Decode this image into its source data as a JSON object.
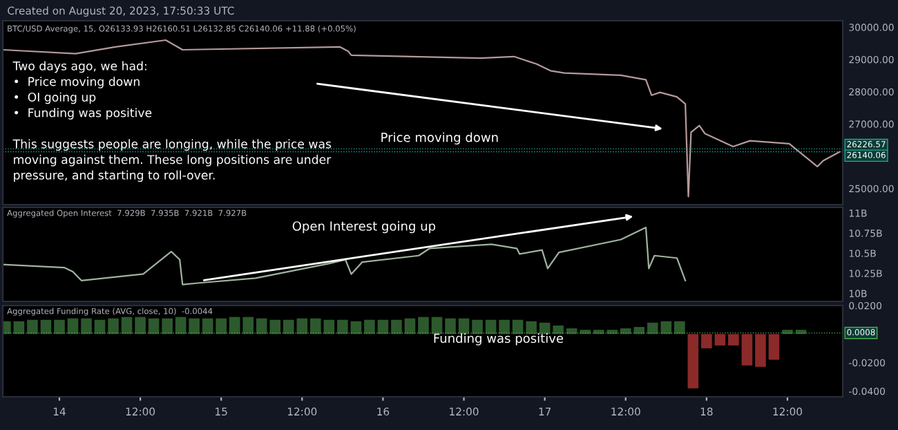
{
  "chart_data": [
    {
      "type": "line",
      "title": "BTC/USD Average, 15, O26133.93 H26160.51 L26132.85 C26140.06 +11.88 (+0.05%)",
      "annotations": [
        "Created on August 20, 2023, 17:50:33 UTC",
        "Two days ago, we had:\n•  Price moving down\n•  OI going up\n•  Funding was positive\n\nThis suggests people are longing, while the price was\nmoving against them. These long positions are under\npressure, and starting to roll-over.",
        "Price moving down"
      ],
      "x": [
        "2023-08-13T15:36",
        "2023-08-14T02:24",
        "2023-08-14T08:18",
        "2023-08-14T15:46",
        "2023-08-14T18:16",
        "2023-08-15T17:36",
        "2023-08-15T18:51",
        "2023-08-15T19:18",
        "2023-08-16T14:26",
        "2023-08-16T19:26",
        "2023-08-16T22:46",
        "2023-08-17T00:51",
        "2023-08-17T02:56",
        "2023-08-17T11:18",
        "2023-08-17T15:00",
        "2023-08-17T15:51",
        "2023-08-17T17:06",
        "2023-08-17T19:36",
        "2023-08-17T20:51",
        "2023-08-17T21:18",
        "2023-08-17T21:42",
        "2023-08-17T22:56",
        "2023-08-17T23:46",
        "2023-08-18T03:56",
        "2023-08-18T06:26",
        "2023-08-18T12:16",
        "2023-08-18T16:26",
        "2023-08-18T17:18",
        "2023-08-18T19:46"
      ],
      "series": [
        {
          "color": "#b59a9a",
          "values": [
            29300,
            29180,
            29390,
            29600,
            29300,
            29390,
            29250,
            29130,
            29040,
            29090,
            28860,
            28650,
            28580,
            28510,
            28370,
            27890,
            27980,
            27840,
            27620,
            24750,
            26740,
            26950,
            26700,
            26300,
            26480,
            26390,
            25680,
            25860,
            26140
          ]
        }
      ],
      "xlim": [
        "2023-08-13T15:36",
        "2023-08-18T20:12"
      ],
      "ylim": [
        24500,
        30200
      ],
      "yticks": [
        {
          "value": 25000,
          "label": "25000.00"
        },
        {
          "value": 27000,
          "label": "27000.00"
        },
        {
          "value": 28000,
          "label": "28000.00"
        },
        {
          "value": 29000,
          "label": "29000.00"
        },
        {
          "value": 30000,
          "label": "30000.00"
        }
      ],
      "ref_lines": [
        {
          "axis": "y",
          "value": 26226.57,
          "label": "26226.57",
          "color": "#26a69a"
        },
        {
          "axis": "y",
          "value": 26140.06,
          "label": "26140.06",
          "color": "#26a69a"
        }
      ],
      "tick_labels": "y"
    },
    {
      "type": "line",
      "title": "Aggregated Open Interest  7.929B  7.935B  7.921B  7.927B",
      "annotations": [
        "Open Interest going up"
      ],
      "x": [
        "2023-08-13T15:36",
        "2023-08-14T00:46",
        "2023-08-14T02:00",
        "2023-08-14T03:16",
        "2023-08-14T12:26",
        "2023-08-14T16:36",
        "2023-08-14T17:51",
        "2023-08-14T18:16",
        "2023-08-14T20:46",
        "2023-08-15T05:06",
        "2023-08-15T15:56",
        "2023-08-15T18:26",
        "2023-08-15T19:18",
        "2023-08-15T20:56",
        "2023-08-16T05:18",
        "2023-08-16T06:56",
        "2023-08-16T16:06",
        "2023-08-16T19:51",
        "2023-08-16T20:16",
        "2023-08-16T23:36",
        "2023-08-17T00:26",
        "2023-08-17T02:06",
        "2023-08-17T11:18",
        "2023-08-17T15:00",
        "2023-08-17T15:26",
        "2023-08-17T16:16",
        "2023-08-17T19:36",
        "2023-08-17T20:51"
      ],
      "series": [
        {
          "color": "#9fb39f",
          "values": [
            10.36,
            10.32,
            10.27,
            10.16,
            10.24,
            10.52,
            10.42,
            10.11,
            10.13,
            10.19,
            10.37,
            10.42,
            10.24,
            10.39,
            10.47,
            10.56,
            10.61,
            10.56,
            10.49,
            10.54,
            10.31,
            10.51,
            10.67,
            10.82,
            10.31,
            10.47,
            10.44,
            10.16
          ]
        }
      ],
      "xlim": [
        "2023-08-13T15:36",
        "2023-08-18T20:12"
      ],
      "ylim": [
        9.9,
        11.07
      ],
      "yticks": [
        {
          "value": 10,
          "label": "10B"
        },
        {
          "value": 10.25,
          "label": "10.25B"
        },
        {
          "value": 10.5,
          "label": "10.5B"
        },
        {
          "value": 10.75,
          "label": "10.75B"
        },
        {
          "value": 11,
          "label": "11B"
        }
      ],
      "tick_labels": "y"
    },
    {
      "type": "bar",
      "title": "Aggregated Funding Rate (AVG, close, 10)  -0.0044",
      "annotations": [
        "Funding was positive"
      ],
      "x": [
        "2023-08-13T16:00",
        "2023-08-13T18:00",
        "2023-08-13T20:00",
        "2023-08-13T22:00",
        "2023-08-14T00:00",
        "2023-08-14T02:00",
        "2023-08-14T04:00",
        "2023-08-14T06:00",
        "2023-08-14T08:00",
        "2023-08-14T10:00",
        "2023-08-14T12:00",
        "2023-08-14T14:00",
        "2023-08-14T16:00",
        "2023-08-14T18:00",
        "2023-08-14T20:00",
        "2023-08-14T22:00",
        "2023-08-15T00:00",
        "2023-08-15T02:00",
        "2023-08-15T04:00",
        "2023-08-15T06:00",
        "2023-08-15T08:00",
        "2023-08-15T10:00",
        "2023-08-15T12:00",
        "2023-08-15T14:00",
        "2023-08-15T16:00",
        "2023-08-15T18:00",
        "2023-08-15T20:00",
        "2023-08-15T22:00",
        "2023-08-16T00:00",
        "2023-08-16T02:00",
        "2023-08-16T04:00",
        "2023-08-16T06:00",
        "2023-08-16T08:00",
        "2023-08-16T10:00",
        "2023-08-16T12:00",
        "2023-08-16T14:00",
        "2023-08-16T16:00",
        "2023-08-16T18:00",
        "2023-08-16T20:00",
        "2023-08-16T22:00",
        "2023-08-17T00:00",
        "2023-08-17T02:00",
        "2023-08-17T04:00",
        "2023-08-17T06:00",
        "2023-08-17T08:00",
        "2023-08-17T10:00",
        "2023-08-17T12:00",
        "2023-08-17T14:00",
        "2023-08-17T16:00",
        "2023-08-17T18:00",
        "2023-08-17T20:00",
        "2023-08-17T22:00",
        "2023-08-18T00:00",
        "2023-08-18T02:00",
        "2023-08-18T04:00",
        "2023-08-18T06:00",
        "2023-08-18T08:00",
        "2023-08-18T10:00",
        "2023-08-18T12:00",
        "2023-08-18T14:00"
      ],
      "values": [
        0.009,
        0.009,
        0.01,
        0.01,
        0.01,
        0.011,
        0.011,
        0.01,
        0.011,
        0.012,
        0.012,
        0.011,
        0.011,
        0.012,
        0.011,
        0.011,
        0.011,
        0.012,
        0.012,
        0.011,
        0.01,
        0.01,
        0.011,
        0.011,
        0.01,
        0.01,
        0.009,
        0.01,
        0.01,
        0.01,
        0.011,
        0.012,
        0.012,
        0.011,
        0.011,
        0.01,
        0.01,
        0.01,
        0.01,
        0.009,
        0.008,
        0.006,
        0.004,
        0.003,
        0.003,
        0.003,
        0.004,
        0.005,
        0.008,
        0.009,
        0.009,
        -0.038,
        -0.01,
        -0.008,
        -0.008,
        -0.022,
        -0.023,
        -0.018,
        0.003,
        0.003
      ],
      "colors": [
        "#2d5a2d",
        "#2d5a2d",
        "#2d5a2d",
        "#2d5a2d",
        "#2d5a2d",
        "#2d5a2d",
        "#2d5a2d",
        "#2d5a2d",
        "#2d5a2d",
        "#2d5a2d",
        "#2d5a2d",
        "#2d5a2d",
        "#2d5a2d",
        "#2d5a2d",
        "#2d5a2d",
        "#2d5a2d",
        "#2d5a2d",
        "#2d5a2d",
        "#2d5a2d",
        "#2d5a2d",
        "#2d5a2d",
        "#2d5a2d",
        "#2d5a2d",
        "#2d5a2d",
        "#2d5a2d",
        "#2d5a2d",
        "#2d5a2d",
        "#2d5a2d",
        "#2d5a2d",
        "#2d5a2d",
        "#2d5a2d",
        "#2d5a2d",
        "#2d5a2d",
        "#2d5a2d",
        "#2d5a2d",
        "#2d5a2d",
        "#2d5a2d",
        "#2d5a2d",
        "#2d5a2d",
        "#2d5a2d",
        "#2d5a2d",
        "#2d5a2d",
        "#2d5a2d",
        "#2d5a2d",
        "#2d5a2d",
        "#2d5a2d",
        "#2d5a2d",
        "#2d5a2d",
        "#2d5a2d",
        "#2d5a2d",
        "#2d5a2d",
        "#8c2a2a",
        "#8c2a2a",
        "#8c2a2a",
        "#8c2a2a",
        "#8c2a2a",
        "#8c2a2a",
        "#8c2a2a",
        "#2d5a2d",
        "#2d5a2d"
      ],
      "xlim": [
        "2023-08-13T15:36",
        "2023-08-18T20:12"
      ],
      "xticks": [
        {
          "value": "2023-08-14T00:00",
          "label": "14"
        },
        {
          "value": "2023-08-14T12:00",
          "label": "12:00"
        },
        {
          "value": "2023-08-15T00:00",
          "label": "15"
        },
        {
          "value": "2023-08-15T12:00",
          "label": "12:00"
        },
        {
          "value": "2023-08-16T00:00",
          "label": "16"
        },
        {
          "value": "2023-08-16T12:00",
          "label": "12:00"
        },
        {
          "value": "2023-08-17T00:00",
          "label": "17"
        },
        {
          "value": "2023-08-17T12:00",
          "label": "12:00"
        },
        {
          "value": "2023-08-18T00:00",
          "label": "18"
        },
        {
          "value": "2023-08-18T12:00",
          "label": "12:00"
        }
      ],
      "ylim": [
        -0.044,
        0.02
      ],
      "yticks": [
        {
          "value": -0.04,
          "label": "-0.0400"
        },
        {
          "value": -0.02,
          "label": "-0.0200"
        },
        {
          "value": 0,
          "label": null
        },
        {
          "value": 0.02,
          "label": "0.0200"
        }
      ],
      "ref_lines": [
        {
          "axis": "y",
          "value": 0.0008,
          "label": "0.0008",
          "color": "#4caf50"
        }
      ]
    }
  ]
}
